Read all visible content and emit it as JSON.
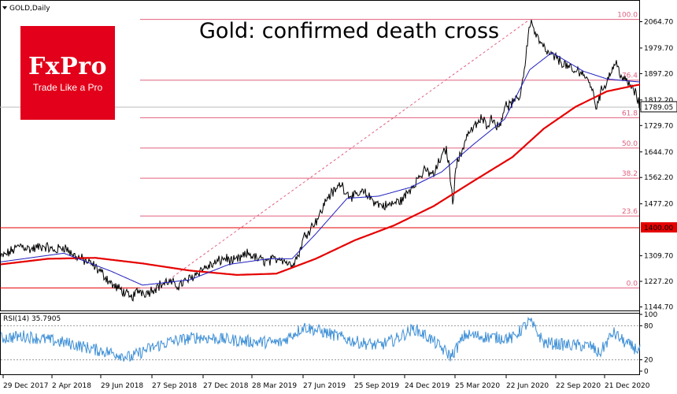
{
  "chart_data": [
    {
      "type": "line",
      "symbol_title": "GOLD,Daily",
      "title": "Gold: confirmed death cross",
      "ylim": [
        1110,
        2090
      ],
      "y_ticks": [
        "2064.70",
        "1979.70",
        "1897.20",
        "1812.20",
        "1729.70",
        "1644.70",
        "1562.20",
        "1477.20",
        "1309.70",
        "1227.20",
        "1144.70"
      ],
      "y_tick_values": [
        2064.7,
        1979.7,
        1897.2,
        1812.2,
        1729.7,
        1644.7,
        1562.2,
        1477.2,
        1309.7,
        1227.2,
        1144.7
      ],
      "last_price": "1789.05",
      "last_price_value": 1789.05,
      "level_label": "1400.00",
      "level_value": 1400,
      "x_labels": [
        "29 Dec 2017",
        "2 Apr 2018",
        "29 Jun 2018",
        "27 Sep 2018",
        "27 Dec 2018",
        "28 Mar 2019",
        "27 Jun 2019",
        "25 Sep 2019",
        "24 Dec 2019",
        "25 Mar 2020",
        "22 Jun 2020",
        "22 Sep 2020",
        "21 Dec 2020"
      ],
      "fib_levels": [
        {
          "label": "100.0",
          "price": 2072
        },
        {
          "label": "76.4",
          "price": 1876
        },
        {
          "label": "61.8",
          "price": 1755
        },
        {
          "label": "50.0",
          "price": 1657
        },
        {
          "label": "38.2",
          "price": 1560
        },
        {
          "label": "23.6",
          "price": 1438
        },
        {
          "label": "0.0",
          "price": 1206
        }
      ],
      "price_series": {
        "name": "GOLD",
        "keypoints": [
          [
            0,
            1305
          ],
          [
            12,
            1322
          ],
          [
            25,
            1344
          ],
          [
            38,
            1330
          ],
          [
            55,
            1342
          ],
          [
            68,
            1325
          ],
          [
            80,
            1340
          ],
          [
            92,
            1312
          ],
          [
            105,
            1296
          ],
          [
            118,
            1278
          ],
          [
            130,
            1250
          ],
          [
            143,
            1213
          ],
          [
            155,
            1196
          ],
          [
            165,
            1172
          ],
          [
            175,
            1198
          ],
          [
            185,
            1190
          ],
          [
            200,
            1212
          ],
          [
            212,
            1226
          ],
          [
            225,
            1213
          ],
          [
            240,
            1235
          ],
          [
            255,
            1266
          ],
          [
            270,
            1282
          ],
          [
            285,
            1303
          ],
          [
            295,
            1290
          ],
          [
            305,
            1302
          ],
          [
            315,
            1318
          ],
          [
            325,
            1300
          ],
          [
            340,
            1291
          ],
          [
            355,
            1305
          ],
          [
            368,
            1280
          ],
          [
            378,
            1310
          ],
          [
            385,
            1370
          ],
          [
            395,
            1405
          ],
          [
            405,
            1440
          ],
          [
            415,
            1500
          ],
          [
            425,
            1520
          ],
          [
            432,
            1545
          ],
          [
            440,
            1510
          ],
          [
            450,
            1500
          ],
          [
            460,
            1515
          ],
          [
            470,
            1495
          ],
          [
            480,
            1475
          ],
          [
            490,
            1470
          ],
          [
            500,
            1480
          ],
          [
            510,
            1490
          ],
          [
            520,
            1525
          ],
          [
            530,
            1560
          ],
          [
            540,
            1585
          ],
          [
            550,
            1570
          ],
          [
            558,
            1620
          ],
          [
            566,
            1655
          ],
          [
            570,
            1590
          ],
          [
            574,
            1480
          ],
          [
            578,
            1600
          ],
          [
            585,
            1640
          ],
          [
            592,
            1700
          ],
          [
            600,
            1720
          ],
          [
            610,
            1750
          ],
          [
            618,
            1735
          ],
          [
            625,
            1755
          ],
          [
            632,
            1720
          ],
          [
            640,
            1790
          ],
          [
            648,
            1798
          ],
          [
            655,
            1810
          ],
          [
            660,
            1830
          ],
          [
            663,
            1880
          ],
          [
            666,
            1930
          ],
          [
            669,
            2000
          ],
          [
            673,
            2070
          ],
          [
            680,
            2020
          ],
          [
            688,
            1985
          ],
          [
            696,
            1960
          ],
          [
            704,
            1950
          ],
          [
            712,
            1935
          ],
          [
            720,
            1920
          ],
          [
            728,
            1900
          ],
          [
            736,
            1910
          ],
          [
            744,
            1880
          ],
          [
            750,
            1860
          ],
          [
            756,
            1790
          ],
          [
            762,
            1835
          ],
          [
            770,
            1875
          ],
          [
            778,
            1920
          ],
          [
            782,
            1930
          ],
          [
            790,
            1880
          ],
          [
            798,
            1865
          ],
          [
            806,
            1835
          ],
          [
            812,
            1789
          ]
        ]
      },
      "ma_blue": {
        "name": "MA fast",
        "keypoints": [
          [
            0,
            1290
          ],
          [
            80,
            1318
          ],
          [
            140,
            1260
          ],
          [
            180,
            1215
          ],
          [
            240,
            1232
          ],
          [
            290,
            1282
          ],
          [
            340,
            1300
          ],
          [
            370,
            1300
          ],
          [
            400,
            1380
          ],
          [
            440,
            1495
          ],
          [
            480,
            1502
          ],
          [
            520,
            1530
          ],
          [
            560,
            1580
          ],
          [
            600,
            1668
          ],
          [
            640,
            1750
          ],
          [
            672,
            1910
          ],
          [
            700,
            1965
          ],
          [
            740,
            1905
          ],
          [
            770,
            1880
          ],
          [
            812,
            1870
          ]
        ]
      },
      "ma_red": {
        "name": "MA slow",
        "keypoints": [
          [
            0,
            1282
          ],
          [
            60,
            1300
          ],
          [
            120,
            1303
          ],
          [
            180,
            1285
          ],
          [
            240,
            1262
          ],
          [
            300,
            1248
          ],
          [
            350,
            1252
          ],
          [
            400,
            1300
          ],
          [
            450,
            1360
          ],
          [
            500,
            1408
          ],
          [
            550,
            1470
          ],
          [
            600,
            1550
          ],
          [
            650,
            1628
          ],
          [
            690,
            1720
          ],
          [
            730,
            1790
          ],
          [
            770,
            1840
          ],
          [
            800,
            1856
          ],
          [
            812,
            1862
          ]
        ]
      }
    },
    {
      "type": "line",
      "title": "RSI(14) 35.7905",
      "ylim": [
        0,
        100
      ],
      "y_ticks": [
        "100",
        "80",
        "20",
        "0"
      ],
      "y_tick_values": [
        100,
        80,
        20,
        0
      ],
      "series": [
        {
          "name": "RSI(14)",
          "keypoints": [
            [
              0,
              58
            ],
            [
              30,
              62
            ],
            [
              60,
              55
            ],
            [
              90,
              48
            ],
            [
              120,
              38
            ],
            [
              150,
              30
            ],
            [
              165,
              24
            ],
            [
              185,
              38
            ],
            [
              215,
              52
            ],
            [
              250,
              60
            ],
            [
              285,
              56
            ],
            [
              320,
              52
            ],
            [
              355,
              50
            ],
            [
              385,
              78
            ],
            [
              420,
              65
            ],
            [
              450,
              52
            ],
            [
              480,
              45
            ],
            [
              500,
              55
            ],
            [
              525,
              75
            ],
            [
              545,
              58
            ],
            [
              572,
              26
            ],
            [
              590,
              64
            ],
            [
              620,
              60
            ],
            [
              650,
              58
            ],
            [
              672,
              88
            ],
            [
              690,
              50
            ],
            [
              720,
              46
            ],
            [
              750,
              44
            ],
            [
              760,
              30
            ],
            [
              778,
              68
            ],
            [
              795,
              48
            ],
            [
              812,
              35.8
            ]
          ]
        }
      ]
    }
  ]
}
